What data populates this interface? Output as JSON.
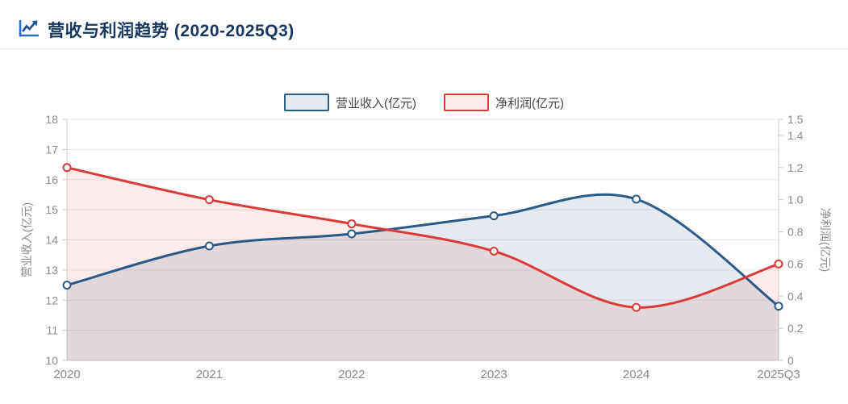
{
  "header": {
    "title": "营收与利润趋势 (2020-2025Q3)",
    "icon": "trend-line-chart-icon"
  },
  "colors": {
    "title_text": "#16365e",
    "icon_blue": "#2e6bc4",
    "icon_dark_blue": "#24549e",
    "revenue_line": "#2b5a87",
    "profit_line": "#dc3b3b",
    "revenue_fill": "rgba(43,90,135,0.13)",
    "profit_fill": "rgba(220,59,59,0.10)",
    "grid_line": "#e8e8e8",
    "axis_line": "#cccccc",
    "tick_text": "#8a8a8a",
    "legend_text": "#464646",
    "marker_fill": "#ffffff"
  },
  "chart_data": {
    "type": "line",
    "smooth": true,
    "grid": true,
    "legend_position": "top-center",
    "categories": [
      "2020",
      "2021",
      "2022",
      "2023",
      "2024",
      "2025Q3"
    ],
    "series": [
      {
        "name": "营业收入(亿元)",
        "yaxis": "left",
        "color": "#2b5a87",
        "fill": "rgba(43,90,135,0.13)",
        "values": [
          12.5,
          13.8,
          14.2,
          14.8,
          15.35,
          11.8
        ]
      },
      {
        "name": "净利润(亿元)",
        "yaxis": "right",
        "color": "#dc3b3b",
        "fill": "rgba(220,59,59,0.10)",
        "values": [
          1.2,
          1.0,
          0.85,
          0.68,
          0.33,
          0.6
        ]
      }
    ],
    "left_axis": {
      "name": "营业收入(亿元)",
      "min": 10,
      "max": 18,
      "tick_labels": [
        "10",
        "11",
        "12",
        "13",
        "14",
        "15",
        "16",
        "17",
        "18"
      ]
    },
    "right_axis": {
      "name": "净利润(亿元)",
      "min": 0,
      "max": 1.5,
      "tick_labels": [
        "0",
        "0.2",
        "0.4",
        "0.6",
        "0.8",
        "1.0",
        "1.2",
        "1.4",
        "1.5"
      ]
    }
  }
}
